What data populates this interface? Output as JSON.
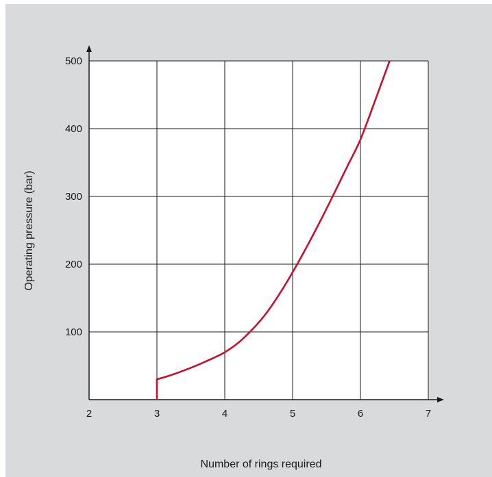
{
  "chart_data": {
    "type": "line",
    "xlabel": "Number of rings required",
    "ylabel": "Operating pressure (bar)",
    "xlim": [
      2,
      7
    ],
    "ylim": [
      0,
      500
    ],
    "x_ticks": [
      "2",
      "3",
      "4",
      "5",
      "6",
      "7"
    ],
    "y_ticks": [
      "100",
      "200",
      "300",
      "400",
      "500"
    ],
    "grid": true,
    "series": [
      {
        "color": "#c8102e",
        "x": [
          3.0,
          3.0,
          3.2,
          3.5,
          3.8,
          4.0,
          4.2,
          4.4,
          4.6,
          4.8,
          5.0,
          5.2,
          5.4,
          5.6,
          5.8,
          6.0,
          6.2,
          6.43
        ],
        "y": [
          0,
          30,
          36,
          47,
          60,
          70,
          84,
          103,
          126,
          155,
          188,
          224,
          262,
          302,
          343,
          384,
          437,
          500
        ]
      }
    ]
  },
  "colors": {
    "background": "#d9dadb",
    "plot_area": "#ffffff",
    "grid": "#1a1a1a",
    "curve": "#c8102e"
  }
}
